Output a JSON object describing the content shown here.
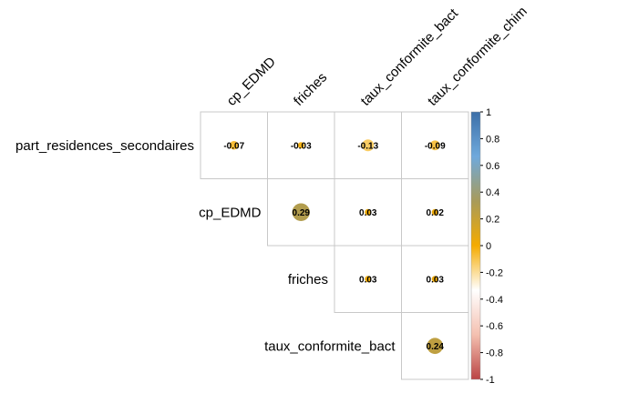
{
  "chart_data": {
    "type": "correlogram",
    "variables": [
      "part_residences_secondaires",
      "cp_EDMD",
      "friches",
      "taux_conformite_bact",
      "taux_conformite_chim"
    ],
    "row_labels": [
      "part_residences_secondaires",
      "cp_EDMD",
      "friches",
      "taux_conformite_bact"
    ],
    "col_labels": [
      "cp_EDMD",
      "friches",
      "taux_conformite_bact",
      "taux_conformite_chim"
    ],
    "cells": [
      {
        "row": 0,
        "col": 0,
        "value": -0.07,
        "label": "-0.07"
      },
      {
        "row": 0,
        "col": 1,
        "value": -0.03,
        "label": "-0.03"
      },
      {
        "row": 0,
        "col": 2,
        "value": -0.13,
        "label": "-0.13"
      },
      {
        "row": 0,
        "col": 3,
        "value": -0.09,
        "label": "-0.09"
      },
      {
        "row": 1,
        "col": 1,
        "value": 0.29,
        "label": "0.29"
      },
      {
        "row": 1,
        "col": 2,
        "value": 0.03,
        "label": "0.03"
      },
      {
        "row": 1,
        "col": 3,
        "value": 0.02,
        "label": "0.02"
      },
      {
        "row": 2,
        "col": 2,
        "value": 0.03,
        "label": "0.03"
      },
      {
        "row": 2,
        "col": 3,
        "value": 0.03,
        "label": "0.03"
      },
      {
        "row": 3,
        "col": 3,
        "value": 0.24,
        "label": "0.24"
      }
    ],
    "colorbar": {
      "ticks": [
        "1",
        "0.8",
        "0.6",
        "0.4",
        "0.2",
        "0",
        "-0.2",
        "-0.4",
        "-0.6",
        "-0.8",
        "-1"
      ],
      "range": [
        -1,
        1
      ],
      "colors": [
        "#bb4444",
        "#f4c0b0",
        "#ffffff",
        "#f5ab00",
        "#a89b5a",
        "#6fa9dc",
        "#3c6fa8"
      ]
    }
  }
}
